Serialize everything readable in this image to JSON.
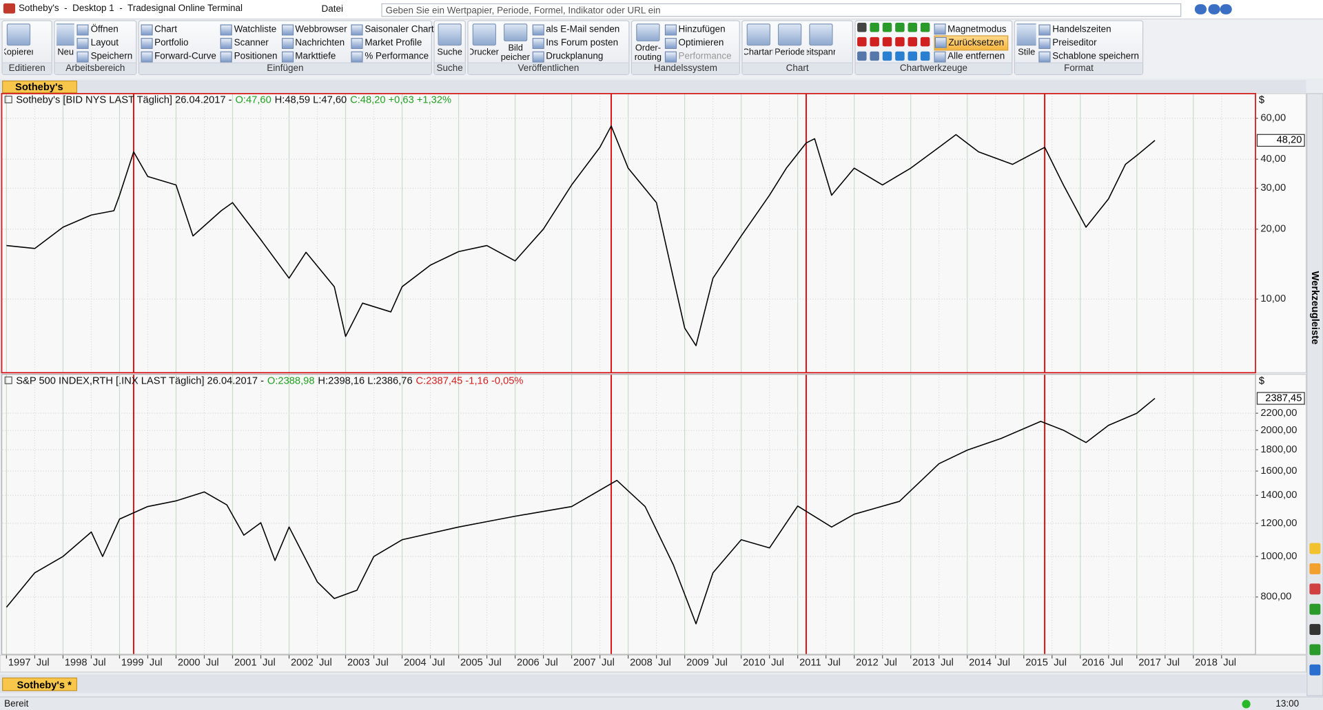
{
  "window": {
    "title": "Sotheby's  -  Desktop 1  -  Tradesignal Online Terminal",
    "menu": "Datei",
    "search_placeholder": "Geben Sie ein Wertpapier, Periode, Formel, Indikator oder URL ein"
  },
  "ribbon": [
    {
      "label": "Editieren",
      "large": [
        "Kopieren"
      ],
      "small": []
    },
    {
      "label": "Arbeitsbereich",
      "large": [
        "Neu"
      ],
      "small": [
        [
          "Öffnen",
          "Layout",
          "Speichern"
        ]
      ]
    },
    {
      "label": "Einfügen",
      "large": [],
      "small": [
        [
          "Chart",
          "Portfolio",
          "Forward-Curve"
        ],
        [
          "Watchliste",
          "Scanner",
          "Positionen"
        ],
        [
          "Webbrowser",
          "Nachrichten",
          "Markttiefe"
        ],
        [
          "Saisonaler Chart",
          "Market Profile",
          "% Performance"
        ]
      ]
    },
    {
      "label": "Suche",
      "large": [
        "Suche"
      ],
      "small": []
    },
    {
      "label": "Veröffentlichen",
      "large": [
        "Drucken",
        "Bild speichern"
      ],
      "small": [
        [
          "als E-Mail senden",
          "Ins Forum posten",
          "Druckplanung"
        ]
      ]
    },
    {
      "label": "Handelssystem",
      "large": [
        "Order-routing"
      ],
      "small": [
        [
          "Hinzufügen",
          "Optimieren",
          "Performance"
        ]
      ]
    },
    {
      "label": "Chart",
      "large": [
        "Chartart",
        "Periode",
        "Zeitspanne"
      ],
      "small": []
    },
    {
      "label": "Chartwerkzeuge",
      "large": [],
      "small": [
        [
          "Magnetmodus",
          "Zurücksetzen",
          "Alle entfernen"
        ]
      ]
    },
    {
      "label": "Format",
      "large": [
        "Stile"
      ],
      "small": [
        [
          "Handelszeiten",
          "Preiseditor",
          "Schablone speichern"
        ]
      ]
    }
  ],
  "tabs": {
    "top": "Sotheby's",
    "bottom": "Sotheby's *"
  },
  "sidebar": "Werkzeugleiste",
  "status": {
    "text": "Bereit",
    "time": "13:00"
  },
  "chart_data": [
    {
      "type": "line",
      "header": {
        "name": "Sotheby's [BID NYS LAST Täglich] 26.04.2017 -",
        "open": "O:47,60",
        "high_low": "H:48,59 L:47,60",
        "close": "C:48,20 +0,63 +1,32%"
      },
      "currency": "$",
      "last_label": "48,20",
      "color": "#000000",
      "log_scale": true,
      "grid": true,
      "x": [
        1997.0,
        1997.5,
        1998.0,
        1998.5,
        1998.9,
        1999.0,
        1999.25,
        1999.5,
        2000.0,
        2000.3,
        2000.8,
        2001.0,
        2001.5,
        2002.0,
        2002.3,
        2002.8,
        2003.0,
        2003.3,
        2003.8,
        2004.0,
        2004.5,
        2005.0,
        2005.5,
        2006.0,
        2006.5,
        2007.0,
        2007.5,
        2007.7,
        2008.0,
        2008.5,
        2008.8,
        2009.0,
        2009.2,
        2009.5,
        2010.0,
        2010.5,
        2010.8,
        2011.15,
        2011.3,
        2011.6,
        2012.0,
        2012.5,
        2013.0,
        2013.5,
        2013.8,
        2014.2,
        2014.8,
        2015.37,
        2015.7,
        2016.1,
        2016.5,
        2016.8,
        2017.0,
        2017.32
      ],
      "values": [
        17,
        16.5,
        20.4,
        23,
        24,
        28,
        43,
        33.7,
        31,
        18.7,
        24,
        26,
        18,
        12.3,
        15.9,
        11.3,
        6.9,
        9.6,
        8.8,
        11.3,
        14,
        16,
        17,
        14.6,
        20,
        31,
        45,
        55.6,
        36.6,
        26,
        12.3,
        7.5,
        6.3,
        12.3,
        18.7,
        28,
        36.6,
        47,
        49,
        28,
        36.6,
        31,
        36.6,
        45,
        51,
        43,
        38,
        45,
        31,
        20.4,
        27,
        38,
        41.5,
        48.2
      ],
      "xlim": [
        1996.93,
        2019.1
      ],
      "ylim": [
        4.9,
        76
      ],
      "yticks": [
        {
          "value": 10,
          "label": "10,00"
        },
        {
          "value": 20,
          "label": "20,00"
        },
        {
          "value": 30,
          "label": "30,00"
        },
        {
          "value": 40,
          "label": "40,00"
        },
        {
          "value": 60,
          "label": "60,00"
        }
      ],
      "event_lines": {
        "color": "#e00000",
        "x": [
          1999.25,
          2007.7,
          2011.15,
          2015.37
        ]
      }
    },
    {
      "type": "line",
      "header": {
        "name": "S&P 500 INDEX,RTH [.INX LAST Täglich] 26.04.2017 -",
        "open": "O:2388,98",
        "high_low": "H:2398,16 L:2386,76",
        "close": "C:2387,45 -1,16 -0,05%"
      },
      "currency": "$",
      "last_label": "2387,45",
      "color": "#000000",
      "log_scale": true,
      "grid": true,
      "x": [
        1997.0,
        1997.5,
        1998.0,
        1998.5,
        1998.7,
        1999.0,
        1999.5,
        2000.0,
        2000.5,
        2000.9,
        2001.2,
        2001.5,
        2001.75,
        2002.0,
        2002.5,
        2002.8,
        2003.2,
        2003.5,
        2004.0,
        2005.0,
        2006.0,
        2007.0,
        2007.8,
        2008.3,
        2008.8,
        2009.2,
        2009.5,
        2010.0,
        2010.5,
        2011.0,
        2011.6,
        2012.0,
        2012.8,
        2013.5,
        2014.0,
        2014.6,
        2015.3,
        2015.7,
        2016.1,
        2016.5,
        2017.0,
        2017.32
      ],
      "values": [
        756,
        914,
        1000,
        1144,
        1000,
        1228,
        1316,
        1358,
        1426,
        1328,
        1124,
        1204,
        978,
        1176,
        869,
        793,
        830,
        1000,
        1096,
        1176,
        1248,
        1316,
        1520,
        1316,
        954,
        690,
        914,
        1096,
        1048,
        1320,
        1176,
        1262,
        1354,
        1666,
        1796,
        1915,
        2104,
        2004,
        1872,
        2058,
        2200,
        2387.45
      ],
      "xlim": [
        1996.93,
        2019.1
      ],
      "ylim": [
        586,
        2506
      ],
      "yticks": [
        {
          "value": 800,
          "label": "800,00"
        },
        {
          "value": 1000,
          "label": "1000,00"
        },
        {
          "value": 1200,
          "label": "1200,00"
        },
        {
          "value": 1400,
          "label": "1400,00"
        },
        {
          "value": 1600,
          "label": "1600,00"
        },
        {
          "value": 1800,
          "label": "1800,00"
        },
        {
          "value": 2000,
          "label": "2000,00"
        },
        {
          "value": 2200,
          "label": "2200,00"
        }
      ],
      "xticks": [
        1997,
        {
          "value": 1997.5,
          "label": "Jul"
        },
        1998,
        {
          "value": 1998.5,
          "label": "Jul"
        },
        1999,
        {
          "value": 1999.5,
          "label": "Jul"
        },
        2000,
        {
          "value": 2000.5,
          "label": "Jul"
        },
        2001,
        {
          "value": 2001.5,
          "label": "Jul"
        },
        2002,
        {
          "value": 2002.5,
          "label": "Jul"
        },
        2003,
        {
          "value": 2003.5,
          "label": "Jul"
        },
        2004,
        {
          "value": 2004.5,
          "label": "Jul"
        },
        2005,
        {
          "value": 2005.5,
          "label": "Jul"
        },
        2006,
        {
          "value": 2006.5,
          "label": "Jul"
        },
        2007,
        {
          "value": 2007.5,
          "label": "Jul"
        },
        2008,
        {
          "value": 2008.5,
          "label": "Jul"
        },
        2009,
        {
          "value": 2009.5,
          "label": "Jul"
        },
        2010,
        {
          "value": 2010.5,
          "label": "Jul"
        },
        2011,
        {
          "value": 2011.5,
          "label": "Jul"
        },
        2012,
        {
          "value": 2012.5,
          "label": "Jul"
        },
        2013,
        {
          "value": 2013.5,
          "label": "Jul"
        },
        2014,
        {
          "value": 2014.5,
          "label": "Jul"
        },
        2015,
        {
          "value": 2015.5,
          "label": "Jul"
        },
        2016,
        {
          "value": 2016.5,
          "label": "Jul"
        },
        2017,
        {
          "value": 2017.5,
          "label": "Jul"
        },
        2018,
        {
          "value": 2018.5,
          "label": "Jul"
        }
      ]
    }
  ]
}
